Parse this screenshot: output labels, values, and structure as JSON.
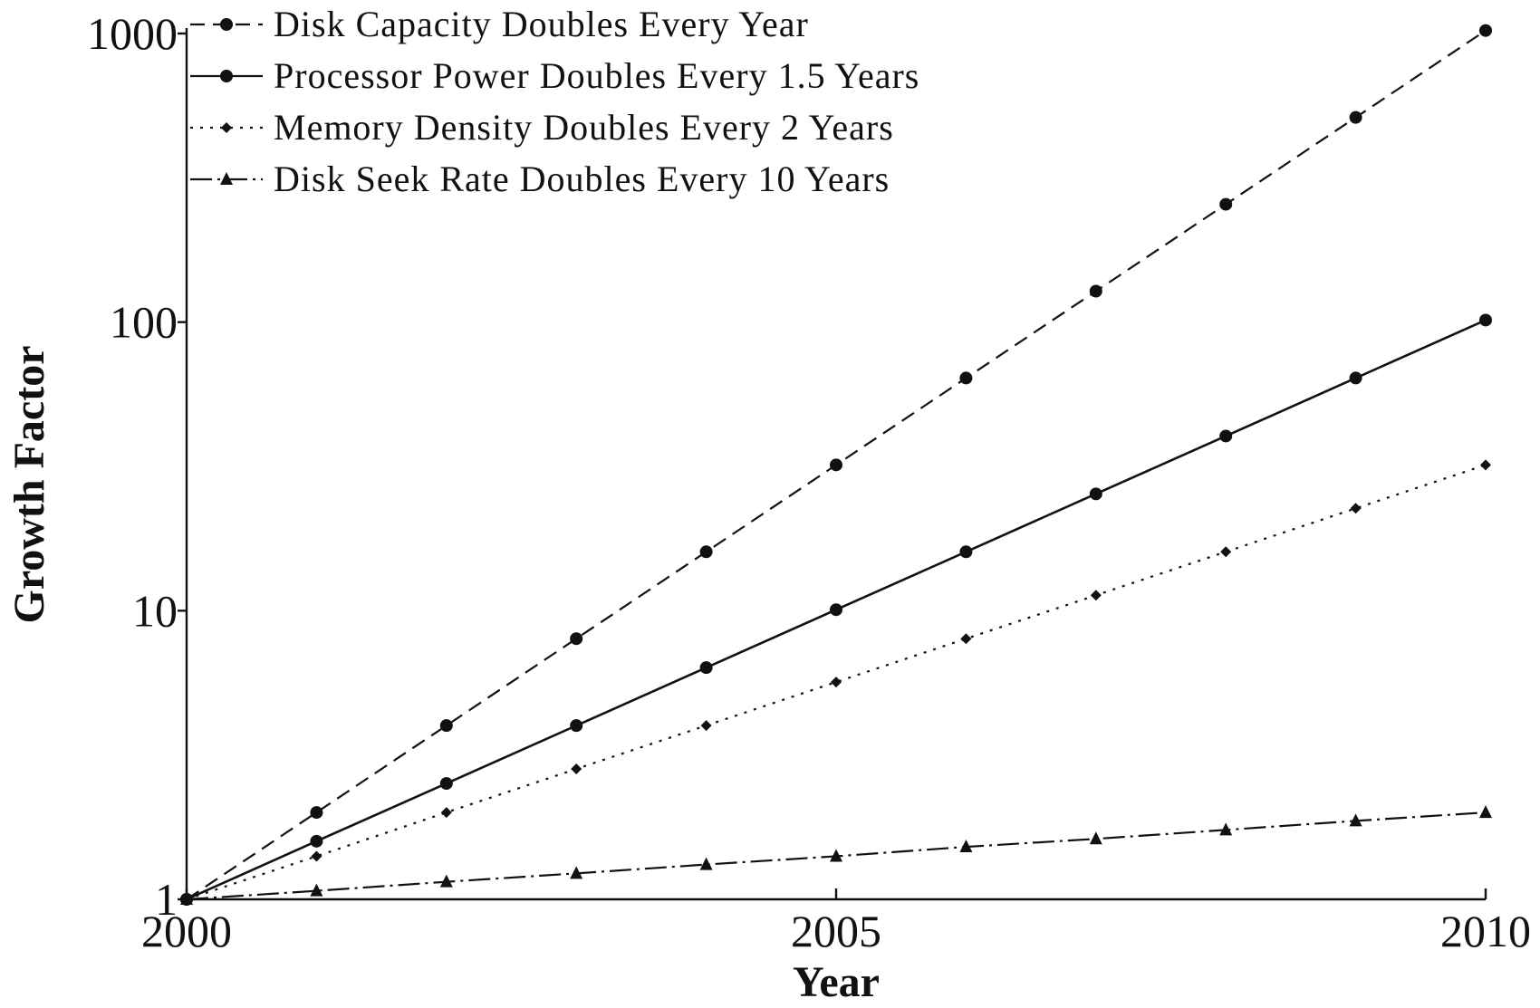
{
  "chart_data": {
    "type": "line",
    "xlabel": "Year",
    "ylabel": "Growth Factor",
    "x": [
      2000,
      2001,
      2002,
      2003,
      2004,
      2005,
      2006,
      2007,
      2008,
      2009,
      2010
    ],
    "xlim": [
      2000,
      2010
    ],
    "ylim": [
      1,
      1000
    ],
    "yscale": "log",
    "xticks": [
      2000,
      2005,
      2010
    ],
    "xtick_labels": [
      "2000",
      "2005",
      "2010"
    ],
    "yticks": [
      1,
      10,
      100,
      1000
    ],
    "ytick_labels": [
      "1",
      "10",
      "100",
      "1000"
    ],
    "grid": false,
    "legend_position": "top-left",
    "series": [
      {
        "name": "Disk Capacity Doubles Every Year",
        "line_style": "dashed",
        "marker": "circle",
        "color": "#111111",
        "values": [
          1,
          2,
          4,
          8,
          16,
          32,
          64,
          128,
          256,
          512,
          1024
        ]
      },
      {
        "name": "Processor Power Doubles Every 1.5 Years",
        "line_style": "solid",
        "marker": "circle",
        "color": "#111111",
        "values": [
          1,
          1.59,
          2.52,
          4,
          6.35,
          10.08,
          16,
          25.4,
          40.3,
          64,
          101.6
        ]
      },
      {
        "name": "Memory Density Doubles Every 2 Years",
        "line_style": "dotted",
        "marker": "diamond",
        "color": "#111111",
        "values": [
          1,
          1.41,
          2,
          2.83,
          4,
          5.66,
          8,
          11.31,
          16,
          22.63,
          32
        ]
      },
      {
        "name": "Disk Seek Rate Doubles Every 10 Years",
        "line_style": "dash-dot",
        "marker": "triangle",
        "color": "#111111",
        "values": [
          1,
          1.07,
          1.15,
          1.23,
          1.32,
          1.41,
          1.52,
          1.62,
          1.74,
          1.87,
          2
        ]
      }
    ]
  }
}
